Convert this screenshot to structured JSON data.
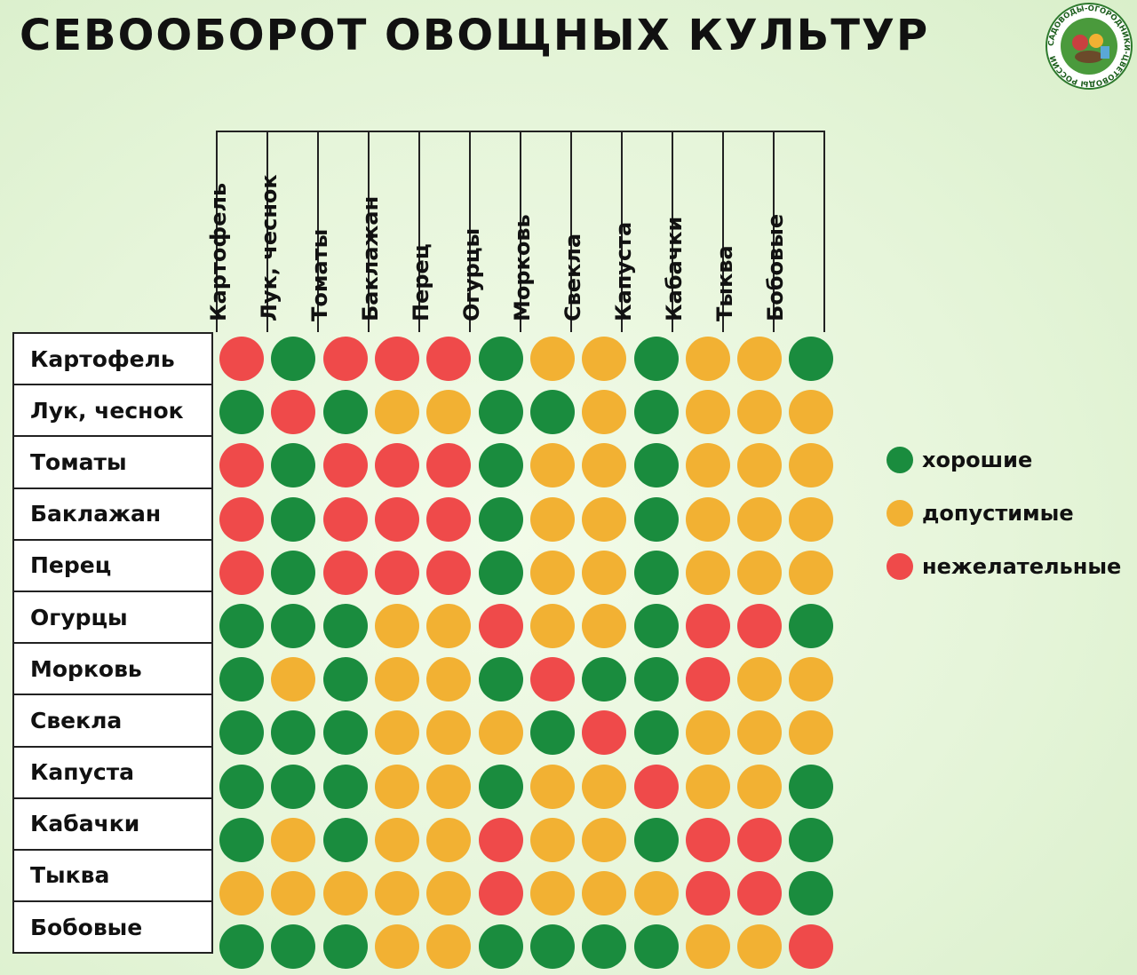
{
  "title": "СЕВООБОРОТ ОВОЩНЫХ КУЛЬТУР",
  "logo": {
    "text": "САДОВОДЫ-ОГОРОДНИКИ-ЦВЕТОВОДЫ РОССИИ"
  },
  "colors": {
    "good": "#1a8c3e",
    "ok": "#f2b133",
    "bad": "#ef4a4a"
  },
  "columns": [
    "Картофель",
    "Лук, чеснок",
    "Томаты",
    "Баклажан",
    "Перец",
    "Огурцы",
    "Морковь",
    "Свекла",
    "Капуста",
    "Кабачки",
    "Тыква",
    "Бобовые"
  ],
  "rows": [
    "Картофель",
    "Лук, чеснок",
    "Томаты",
    "Баклажан",
    "Перец",
    "Огурцы",
    "Морковь",
    "Свекла",
    "Капуста",
    "Кабачки",
    "Тыква",
    "Бобовые"
  ],
  "matrix": [
    [
      "bad",
      "good",
      "bad",
      "bad",
      "bad",
      "good",
      "ok",
      "ok",
      "good",
      "ok",
      "ok",
      "good"
    ],
    [
      "good",
      "bad",
      "good",
      "ok",
      "ok",
      "good",
      "good",
      "ok",
      "good",
      "ok",
      "ok",
      "ok"
    ],
    [
      "bad",
      "good",
      "bad",
      "bad",
      "bad",
      "good",
      "ok",
      "ok",
      "good",
      "ok",
      "ok",
      "ok"
    ],
    [
      "bad",
      "good",
      "bad",
      "bad",
      "bad",
      "good",
      "ok",
      "ok",
      "good",
      "ok",
      "ok",
      "ok"
    ],
    [
      "bad",
      "good",
      "bad",
      "bad",
      "bad",
      "good",
      "ok",
      "ok",
      "good",
      "ok",
      "ok",
      "ok"
    ],
    [
      "good",
      "good",
      "good",
      "ok",
      "ok",
      "bad",
      "ok",
      "ok",
      "good",
      "bad",
      "bad",
      "good"
    ],
    [
      "good",
      "ok",
      "good",
      "ok",
      "ok",
      "good",
      "bad",
      "good",
      "good",
      "bad",
      "ok",
      "ok"
    ],
    [
      "good",
      "good",
      "good",
      "ok",
      "ok",
      "ok",
      "good",
      "bad",
      "good",
      "ok",
      "ok",
      "ok"
    ],
    [
      "good",
      "good",
      "good",
      "ok",
      "ok",
      "good",
      "ok",
      "ok",
      "bad",
      "ok",
      "ok",
      "good"
    ],
    [
      "good",
      "ok",
      "good",
      "ok",
      "ok",
      "bad",
      "ok",
      "ok",
      "good",
      "bad",
      "bad",
      "good"
    ],
    [
      "ok",
      "ok",
      "ok",
      "ok",
      "ok",
      "bad",
      "ok",
      "ok",
      "ok",
      "bad",
      "bad",
      "good"
    ],
    [
      "good",
      "good",
      "good",
      "ok",
      "ok",
      "good",
      "good",
      "good",
      "good",
      "ok",
      "ok",
      "bad"
    ]
  ],
  "legend": [
    {
      "key": "good",
      "label": "хорошие"
    },
    {
      "key": "ok",
      "label": "допустимые"
    },
    {
      "key": "bad",
      "label": "нежелательные"
    }
  ]
}
